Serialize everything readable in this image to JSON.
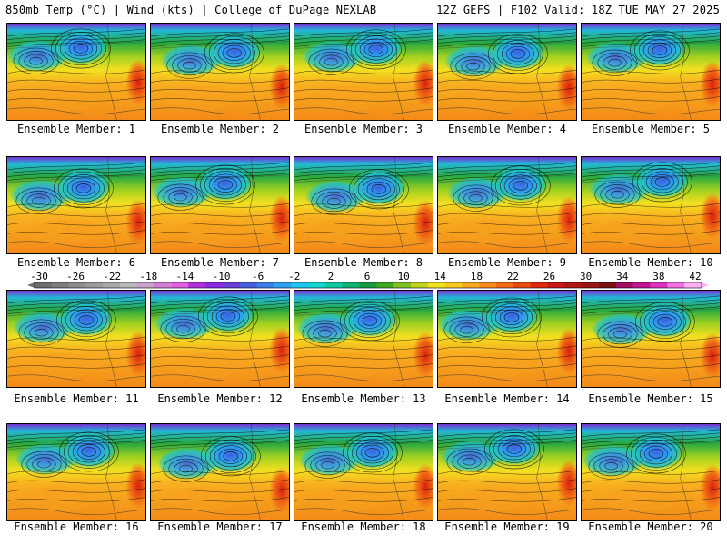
{
  "header": {
    "left": "850mb Temp (°C) | Wind (kts) | College of DuPage NEXLAB",
    "right": "12Z GEFS | F102 Valid: 18Z TUE MAY 27 2025"
  },
  "panels": [
    {
      "label": "Ensemble Member: 1"
    },
    {
      "label": "Ensemble Member: 2"
    },
    {
      "label": "Ensemble Member: 3"
    },
    {
      "label": "Ensemble Member: 4"
    },
    {
      "label": "Ensemble Member: 5"
    },
    {
      "label": "Ensemble Member: 6"
    },
    {
      "label": "Ensemble Member: 7"
    },
    {
      "label": "Ensemble Member: 8"
    },
    {
      "label": "Ensemble Member: 9"
    },
    {
      "label": "Ensemble Member: 10"
    },
    {
      "label": "Ensemble Member: 11"
    },
    {
      "label": "Ensemble Member: 12"
    },
    {
      "label": "Ensemble Member: 13"
    },
    {
      "label": "Ensemble Member: 14"
    },
    {
      "label": "Ensemble Member: 15"
    },
    {
      "label": "Ensemble Member: 16"
    },
    {
      "label": "Ensemble Member: 17"
    },
    {
      "label": "Ensemble Member: 18"
    },
    {
      "label": "Ensemble Member: 19"
    },
    {
      "label": "Ensemble Member: 20"
    }
  ],
  "colorbar": {
    "ticks": [
      "-30",
      "-26",
      "-22",
      "-18",
      "-14",
      "-10",
      "-6",
      "-2",
      "2",
      "6",
      "10",
      "14",
      "18",
      "22",
      "26",
      "30",
      "34",
      "38",
      "42"
    ],
    "colors": [
      "#6e6e6e",
      "#7d7d7d",
      "#8c8c8c",
      "#9b9b9b",
      "#aaaaaa",
      "#b8b8b8",
      "#c8a2c8",
      "#d27fd2",
      "#e060e0",
      "#b030d8",
      "#8a2be2",
      "#6a3fd9",
      "#4a5fe0",
      "#3c7fe8",
      "#2fa0f0",
      "#20c4f0",
      "#16d6d0",
      "#10c8a0",
      "#14b070",
      "#189a40",
      "#40a820",
      "#80c020",
      "#c0d020",
      "#f0e020",
      "#f8c820",
      "#f8a820",
      "#f58a1a",
      "#f06a14",
      "#e84a10",
      "#e02a10",
      "#c81818",
      "#b01818",
      "#981818",
      "#7a1010",
      "#a01060",
      "#c01890",
      "#e030c0",
      "#f070e0",
      "#ffb0f0"
    ]
  }
}
